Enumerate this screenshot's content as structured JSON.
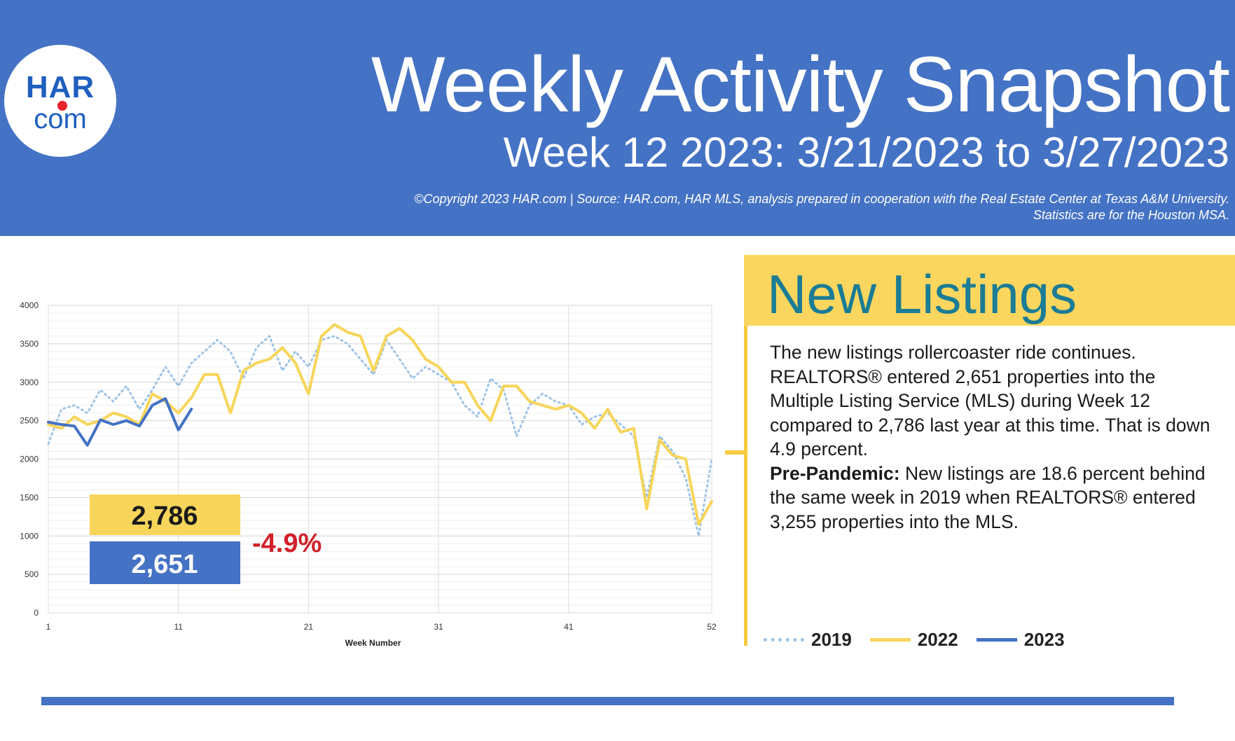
{
  "header": {
    "logo_top": "HAR",
    "logo_bottom": "com",
    "title": "Weekly Activity Snapshot",
    "subtitle": "Week 12 2023: 3/21/2023 to 3/27/2023",
    "copyright_line1": "©Copyright 2023 HAR.com  |  Source: HAR.com, HAR MLS, analysis prepared in cooperation with the Real Estate Center at Texas A&M University.",
    "copyright_line2": "Statistics are for the Houston MSA."
  },
  "panel": {
    "title": "New Listings",
    "paragraph": "The new listings rollercoaster ride continues. REALTORS® entered 2,651 properties into the Multiple Listing Service (MLS) during Week 12 compared to 2,786 last year at this time. That is down 4.9 percent.",
    "prepandemic_label": "Pre-Pandemic:",
    "prepandemic_text": " New listings are 18.6 percent behind the same week in 2019 when REALTORS® entered 3,255 properties into the MLS."
  },
  "legend": [
    {
      "label": "2019"
    },
    {
      "label": "2022"
    },
    {
      "label": "2023"
    }
  ],
  "callouts": {
    "value_2022": "2,786",
    "value_2023": "2,651",
    "change": "-4.9%"
  },
  "colors": {
    "header_blue": "#4472c4",
    "series_2019": "#9dc3e6",
    "series_2022": "#f7d55a",
    "series_2023": "#4472c4",
    "title_teal": "#1a7c95",
    "change_red": "#d0202a"
  },
  "chart_data": {
    "type": "line",
    "xlabel": "Week Number",
    "ylabel": "",
    "xlim": [
      1,
      52
    ],
    "ylim": [
      0,
      4000
    ],
    "x_ticks": [
      1,
      11,
      21,
      31,
      41,
      52
    ],
    "y_ticks": [
      0,
      500,
      1000,
      1500,
      2000,
      2500,
      3000,
      3500,
      4000
    ],
    "grid": true,
    "legend_position": "bottom-right",
    "series": [
      {
        "name": "2019",
        "style": "dotted",
        "x_start": 1,
        "values": [
          2200,
          2650,
          2700,
          2600,
          2900,
          2750,
          2950,
          2650,
          2900,
          3200,
          2950,
          3250,
          3400,
          3550,
          3400,
          3050,
          3450,
          3600,
          3150,
          3400,
          3200,
          3550,
          3600,
          3500,
          3300,
          3100,
          3550,
          3300,
          3050,
          3200,
          3100,
          3000,
          2700,
          2550,
          3050,
          2900,
          2300,
          2700,
          2850,
          2750,
          2700,
          2450,
          2550,
          2600,
          2450,
          2300,
          1500,
          2300,
          2100,
          1750,
          1000,
          2000
        ]
      },
      {
        "name": "2022",
        "style": "solid",
        "x_start": 1,
        "values": [
          2450,
          2400,
          2550,
          2450,
          2500,
          2600,
          2550,
          2450,
          2850,
          2750,
          2600,
          2800,
          3100,
          3100,
          2600,
          3150,
          3250,
          3300,
          3450,
          3250,
          2850,
          3600,
          3750,
          3650,
          3600,
          3150,
          3600,
          3700,
          3550,
          3300,
          3200,
          3000,
          3000,
          2700,
          2500,
          2950,
          2950,
          2750,
          2700,
          2650,
          2700,
          2600,
          2400,
          2650,
          2350,
          2400,
          1350,
          2250,
          2050,
          2000,
          1150,
          1450
        ]
      },
      {
        "name": "2023",
        "style": "solid",
        "x_start": 1,
        "values": [
          2480,
          2450,
          2430,
          2180,
          2510,
          2450,
          2500,
          2430,
          2700,
          2786,
          2380,
          2651
        ]
      }
    ]
  }
}
